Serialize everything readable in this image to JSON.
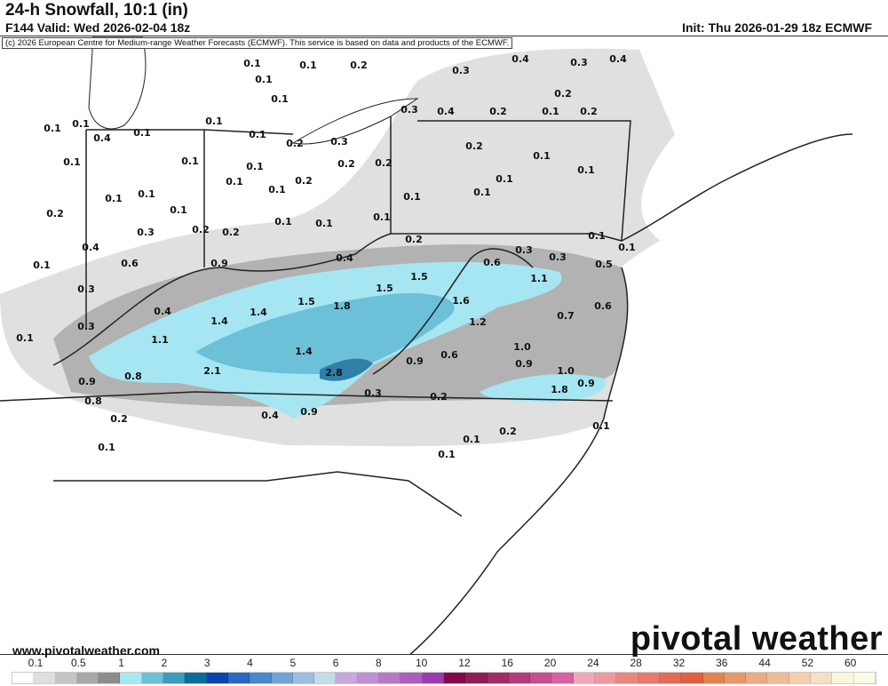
{
  "header": {
    "title": "24-h Snowfall, 10:1 (in)",
    "valid": "F144 Valid: Wed 2026-02-04 18z",
    "init": "Init: Thu 2026-01-29 18z ECMWF",
    "copyright": "(c) 2026 European Centre for Medium-range Weather Forecasts (ECMWF). This service is based on data and products of the ECMWF."
  },
  "footer": {
    "site": "www.pivotalweather.com",
    "brand": "pivotal weather"
  },
  "map": {
    "field": "24-h snowfall",
    "colors": {
      "trace_grey": "#d9d9d9",
      "mid_grey": "#a8a8a8",
      "light_blue": "#a6e6f2",
      "mid_blue": "#66bcd6",
      "deep_blue": "#2f8db6",
      "water": "#ffffff",
      "borders": "#222222",
      "counties": "#9a9a9a"
    },
    "point_values": [
      "0.1",
      "0.1",
      "0.2",
      "0.1",
      "0.1",
      "0.1",
      "0.1",
      "0.4",
      "0.1",
      "0.1",
      "0.1",
      "0.2",
      "0.3",
      "0.1",
      "0.1",
      "0.1",
      "0.2",
      "0.2",
      "0.1",
      "0.1",
      "0.1",
      "0.1",
      "0.2",
      "0.1",
      "0.2",
      "0.1",
      "0.1",
      "0.1",
      "0.3",
      "0.2",
      "0.2",
      "0.4",
      "0.6",
      "0.9",
      "0.1",
      "0.4",
      "0.3",
      "0.4",
      "0.3",
      "1.4",
      "1.4",
      "1.5",
      "1.8",
      "1.5",
      "1.5",
      "0.6",
      "0.3",
      "0.3",
      "0.1",
      "0.1",
      "0.5",
      "1.1",
      "1.6",
      "1.2",
      "0.6",
      "0.7",
      "1.1",
      "0.1",
      "1.4",
      "2.1",
      "0.8",
      "0.9",
      "2.8",
      "0.9",
      "0.6",
      "1.0",
      "0.9",
      "1.0",
      "0.9",
      "1.8",
      "0.8",
      "0.3",
      "0.2",
      "0.2",
      "0.4",
      "0.9",
      "0.1",
      "0.2",
      "0.1",
      "0.1",
      "0.1",
      "0.3",
      "0.4",
      "0.3",
      "0.4",
      "0.2",
      "0.3",
      "0.4",
      "0.2",
      "0.1",
      "0.2",
      "0.2",
      "0.1",
      "0.1",
      "0.1",
      "0.1",
      "0.1",
      "0.2"
    ]
  },
  "legend": {
    "tick_labels": [
      "0.1",
      "0.5",
      "1",
      "2",
      "3",
      "4",
      "5",
      "6",
      "8",
      "10",
      "12",
      "16",
      "20",
      "24",
      "28",
      "32",
      "36",
      "44",
      "52",
      "60"
    ],
    "swatch_colors": [
      "#ffffff",
      "#dedede",
      "#c4c4c4",
      "#a8a8a8",
      "#8c8c8c",
      "#a8e6f0",
      "#6cc0d8",
      "#3d9bc0",
      "#0a6e9c",
      "#0a44b0",
      "#2a66c4",
      "#4a86cc",
      "#72a2d6",
      "#98bee2",
      "#c0dcea",
      "#c8a8dc",
      "#c090d4",
      "#b878c8",
      "#ac5cc0",
      "#9c3cb0",
      "#84084a",
      "#901c5a",
      "#a42a68",
      "#b43c7a",
      "#c84e92",
      "#d860a6",
      "#eea8b8",
      "#ec9aa0",
      "#e8887c",
      "#e67a6c",
      "#e46a56",
      "#e06040",
      "#e0844e",
      "#e69868",
      "#eaac80",
      "#eebc96",
      "#f2d0ae",
      "#f4e0c4",
      "#faf6dc",
      "#fbfbe6"
    ]
  }
}
